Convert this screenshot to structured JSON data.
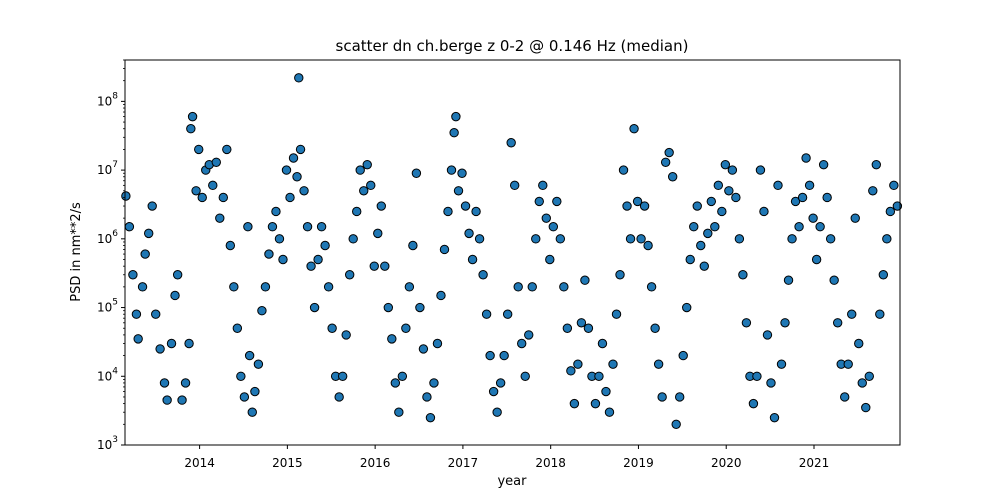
{
  "chart_data": {
    "type": "scatter",
    "title": "scatter dn ch.berge z 0-2 @ 0.146 Hz (median)",
    "xlabel": "year",
    "ylabel": "PSD in nm**2/s",
    "y_scale": "log",
    "xlim": [
      2013.15,
      2021.98
    ],
    "ylim": [
      1000,
      400000000
    ],
    "x_ticks": [
      {
        "value": 2014,
        "label": "2014"
      },
      {
        "value": 2015,
        "label": "2015"
      },
      {
        "value": 2016,
        "label": "2016"
      },
      {
        "value": 2017,
        "label": "2017"
      },
      {
        "value": 2018,
        "label": "2018"
      },
      {
        "value": 2019,
        "label": "2019"
      },
      {
        "value": 2020,
        "label": "2020"
      },
      {
        "value": 2021,
        "label": "2021"
      }
    ],
    "y_ticks": [
      {
        "value": 1000,
        "base": "10",
        "exp": "3"
      },
      {
        "value": 10000,
        "base": "10",
        "exp": "4"
      },
      {
        "value": 100000,
        "base": "10",
        "exp": "5"
      },
      {
        "value": 1000000,
        "base": "10",
        "exp": "6"
      },
      {
        "value": 10000000,
        "base": "10",
        "exp": "7"
      },
      {
        "value": 100000000,
        "base": "10",
        "exp": "8"
      }
    ],
    "grid": false,
    "marker_color": "#1f77b4",
    "marker_edge_color": "#000000",
    "series": [
      {
        "points": [
          [
            2013.16,
            4200000.0
          ],
          [
            2013.2,
            1500000.0
          ],
          [
            2013.24,
            300000.0
          ],
          [
            2013.28,
            80000.0
          ],
          [
            2013.3,
            35000.0
          ],
          [
            2013.35,
            200000.0
          ],
          [
            2013.38,
            600000.0
          ],
          [
            2013.42,
            1200000.0
          ],
          [
            2013.46,
            3000000.0
          ],
          [
            2013.5,
            80000.0
          ],
          [
            2013.55,
            25000.0
          ],
          [
            2013.6,
            8000.0
          ],
          [
            2013.63,
            4500.0
          ],
          [
            2013.68,
            30000.0
          ],
          [
            2013.72,
            150000.0
          ],
          [
            2013.75,
            300000.0
          ],
          [
            2013.8,
            4500.0
          ],
          [
            2013.84,
            8000.0
          ],
          [
            2013.88,
            30000.0
          ],
          [
            2013.9,
            40000000.0
          ],
          [
            2013.92,
            60000000.0
          ],
          [
            2013.96,
            5000000.0
          ],
          [
            2013.99,
            20000000.0
          ],
          [
            2014.03,
            4000000.0
          ],
          [
            2014.07,
            10000000.0
          ],
          [
            2014.11,
            12000000.0
          ],
          [
            2014.15,
            6000000.0
          ],
          [
            2014.19,
            13000000.0
          ],
          [
            2014.23,
            2000000.0
          ],
          [
            2014.27,
            4000000.0
          ],
          [
            2014.31,
            20000000.0
          ],
          [
            2014.35,
            800000.0
          ],
          [
            2014.39,
            200000.0
          ],
          [
            2014.43,
            50000.0
          ],
          [
            2014.47,
            10000.0
          ],
          [
            2014.51,
            5000.0
          ],
          [
            2014.55,
            1500000.0
          ],
          [
            2014.57,
            20000.0
          ],
          [
            2014.6,
            3000.0
          ],
          [
            2014.63,
            6000.0
          ],
          [
            2014.67,
            15000.0
          ],
          [
            2014.71,
            90000.0
          ],
          [
            2014.75,
            200000.0
          ],
          [
            2014.79,
            600000.0
          ],
          [
            2014.83,
            1500000.0
          ],
          [
            2014.87,
            2500000.0
          ],
          [
            2014.91,
            1000000.0
          ],
          [
            2014.95,
            500000.0
          ],
          [
            2014.99,
            10000000.0
          ],
          [
            2015.03,
            4000000.0
          ],
          [
            2015.07,
            15000000.0
          ],
          [
            2015.11,
            8000000.0
          ],
          [
            2015.13,
            220000000.0
          ],
          [
            2015.15,
            20000000.0
          ],
          [
            2015.19,
            5000000.0
          ],
          [
            2015.23,
            1500000.0
          ],
          [
            2015.27,
            400000.0
          ],
          [
            2015.31,
            100000.0
          ],
          [
            2015.35,
            500000.0
          ],
          [
            2015.39,
            1500000.0
          ],
          [
            2015.43,
            800000.0
          ],
          [
            2015.47,
            200000.0
          ],
          [
            2015.51,
            50000.0
          ],
          [
            2015.55,
            10000.0
          ],
          [
            2015.59,
            5000.0
          ],
          [
            2015.63,
            10000.0
          ],
          [
            2015.67,
            40000.0
          ],
          [
            2015.71,
            300000.0
          ],
          [
            2015.75,
            1000000.0
          ],
          [
            2015.79,
            2500000.0
          ],
          [
            2015.83,
            10000000.0
          ],
          [
            2015.87,
            5000000.0
          ],
          [
            2015.91,
            12000000.0
          ],
          [
            2015.95,
            6000000.0
          ],
          [
            2015.99,
            400000.0
          ],
          [
            2016.03,
            1200000.0
          ],
          [
            2016.07,
            3000000.0
          ],
          [
            2016.11,
            400000.0
          ],
          [
            2016.15,
            100000.0
          ],
          [
            2016.19,
            35000.0
          ],
          [
            2016.23,
            8000.0
          ],
          [
            2016.27,
            3000.0
          ],
          [
            2016.31,
            10000.0
          ],
          [
            2016.35,
            50000.0
          ],
          [
            2016.39,
            200000.0
          ],
          [
            2016.43,
            800000.0
          ],
          [
            2016.47,
            9000000.0
          ],
          [
            2016.51,
            100000.0
          ],
          [
            2016.55,
            25000.0
          ],
          [
            2016.59,
            5000.0
          ],
          [
            2016.63,
            2500.0
          ],
          [
            2016.67,
            8000.0
          ],
          [
            2016.71,
            30000.0
          ],
          [
            2016.75,
            150000.0
          ],
          [
            2016.79,
            700000.0
          ],
          [
            2016.83,
            2500000.0
          ],
          [
            2016.87,
            10000000.0
          ],
          [
            2016.9,
            35000000.0
          ],
          [
            2016.92,
            60000000.0
          ],
          [
            2016.95,
            5000000.0
          ],
          [
            2016.99,
            9000000.0
          ],
          [
            2017.03,
            3000000.0
          ],
          [
            2017.07,
            1200000.0
          ],
          [
            2017.11,
            500000.0
          ],
          [
            2017.15,
            2500000.0
          ],
          [
            2017.19,
            1000000.0
          ],
          [
            2017.23,
            300000.0
          ],
          [
            2017.27,
            80000.0
          ],
          [
            2017.31,
            20000.0
          ],
          [
            2017.35,
            6000.0
          ],
          [
            2017.39,
            3000.0
          ],
          [
            2017.43,
            8000.0
          ],
          [
            2017.47,
            20000.0
          ],
          [
            2017.51,
            80000.0
          ],
          [
            2017.55,
            25000000.0
          ],
          [
            2017.59,
            6000000.0
          ],
          [
            2017.63,
            200000.0
          ],
          [
            2017.67,
            30000.0
          ],
          [
            2017.71,
            10000.0
          ],
          [
            2017.75,
            40000.0
          ],
          [
            2017.79,
            200000.0
          ],
          [
            2017.83,
            1000000.0
          ],
          [
            2017.87,
            3500000.0
          ],
          [
            2017.91,
            6000000.0
          ],
          [
            2017.95,
            2000000.0
          ],
          [
            2017.99,
            500000.0
          ],
          [
            2018.03,
            1500000.0
          ],
          [
            2018.07,
            3500000.0
          ],
          [
            2018.11,
            1000000.0
          ],
          [
            2018.15,
            200000.0
          ],
          [
            2018.19,
            50000.0
          ],
          [
            2018.23,
            12000.0
          ],
          [
            2018.27,
            4000.0
          ],
          [
            2018.31,
            15000.0
          ],
          [
            2018.35,
            60000.0
          ],
          [
            2018.39,
            250000.0
          ],
          [
            2018.43,
            50000.0
          ],
          [
            2018.47,
            10000.0
          ],
          [
            2018.51,
            4000.0
          ],
          [
            2018.55,
            10000.0
          ],
          [
            2018.59,
            30000.0
          ],
          [
            2018.63,
            6000.0
          ],
          [
            2018.67,
            3000.0
          ],
          [
            2018.71,
            15000.0
          ],
          [
            2018.75,
            80000.0
          ],
          [
            2018.79,
            300000.0
          ],
          [
            2018.83,
            10000000.0
          ],
          [
            2018.87,
            3000000.0
          ],
          [
            2018.91,
            1000000.0
          ],
          [
            2018.95,
            40000000.0
          ],
          [
            2018.99,
            3500000.0
          ],
          [
            2019.03,
            1000000.0
          ],
          [
            2019.07,
            3000000.0
          ],
          [
            2019.11,
            800000.0
          ],
          [
            2019.15,
            200000.0
          ],
          [
            2019.19,
            50000.0
          ],
          [
            2019.23,
            15000.0
          ],
          [
            2019.27,
            5000.0
          ],
          [
            2019.31,
            13000000.0
          ],
          [
            2019.35,
            18000000.0
          ],
          [
            2019.39,
            8000000.0
          ],
          [
            2019.43,
            2000.0
          ],
          [
            2019.47,
            5000.0
          ],
          [
            2019.51,
            20000.0
          ],
          [
            2019.55,
            100000.0
          ],
          [
            2019.59,
            500000.0
          ],
          [
            2019.63,
            1500000.0
          ],
          [
            2019.67,
            3000000.0
          ],
          [
            2019.71,
            800000.0
          ],
          [
            2019.75,
            400000.0
          ],
          [
            2019.79,
            1200000.0
          ],
          [
            2019.83,
            3500000.0
          ],
          [
            2019.87,
            1500000.0
          ],
          [
            2019.91,
            6000000.0
          ],
          [
            2019.95,
            2500000.0
          ],
          [
            2019.99,
            12000000.0
          ],
          [
            2020.03,
            5000000.0
          ],
          [
            2020.07,
            10000000.0
          ],
          [
            2020.11,
            4000000.0
          ],
          [
            2020.15,
            1000000.0
          ],
          [
            2020.19,
            300000.0
          ],
          [
            2020.23,
            60000.0
          ],
          [
            2020.27,
            10000.0
          ],
          [
            2020.31,
            4000.0
          ],
          [
            2020.35,
            10000.0
          ],
          [
            2020.39,
            10000000.0
          ],
          [
            2020.43,
            2500000.0
          ],
          [
            2020.47,
            40000.0
          ],
          [
            2020.51,
            8000.0
          ],
          [
            2020.55,
            2500.0
          ],
          [
            2020.59,
            6000000.0
          ],
          [
            2020.63,
            15000.0
          ],
          [
            2020.67,
            60000.0
          ],
          [
            2020.71,
            250000.0
          ],
          [
            2020.75,
            1000000.0
          ],
          [
            2020.79,
            3500000.0
          ],
          [
            2020.83,
            1500000.0
          ],
          [
            2020.87,
            4000000.0
          ],
          [
            2020.91,
            15000000.0
          ],
          [
            2020.95,
            6000000.0
          ],
          [
            2020.99,
            2000000.0
          ],
          [
            2021.03,
            500000.0
          ],
          [
            2021.07,
            1500000.0
          ],
          [
            2021.11,
            12000000.0
          ],
          [
            2021.15,
            4000000.0
          ],
          [
            2021.19,
            1000000.0
          ],
          [
            2021.23,
            250000.0
          ],
          [
            2021.27,
            60000.0
          ],
          [
            2021.31,
            15000.0
          ],
          [
            2021.35,
            5000.0
          ],
          [
            2021.39,
            15000.0
          ],
          [
            2021.43,
            80000.0
          ],
          [
            2021.47,
            2000000.0
          ],
          [
            2021.51,
            30000.0
          ],
          [
            2021.55,
            8000.0
          ],
          [
            2021.59,
            3500.0
          ],
          [
            2021.63,
            10000.0
          ],
          [
            2021.67,
            5000000.0
          ],
          [
            2021.71,
            12000000.0
          ],
          [
            2021.75,
            80000.0
          ],
          [
            2021.79,
            300000.0
          ],
          [
            2021.83,
            1000000.0
          ],
          [
            2021.87,
            2500000.0
          ],
          [
            2021.91,
            6000000.0
          ],
          [
            2021.95,
            3000000.0
          ]
        ]
      }
    ]
  }
}
